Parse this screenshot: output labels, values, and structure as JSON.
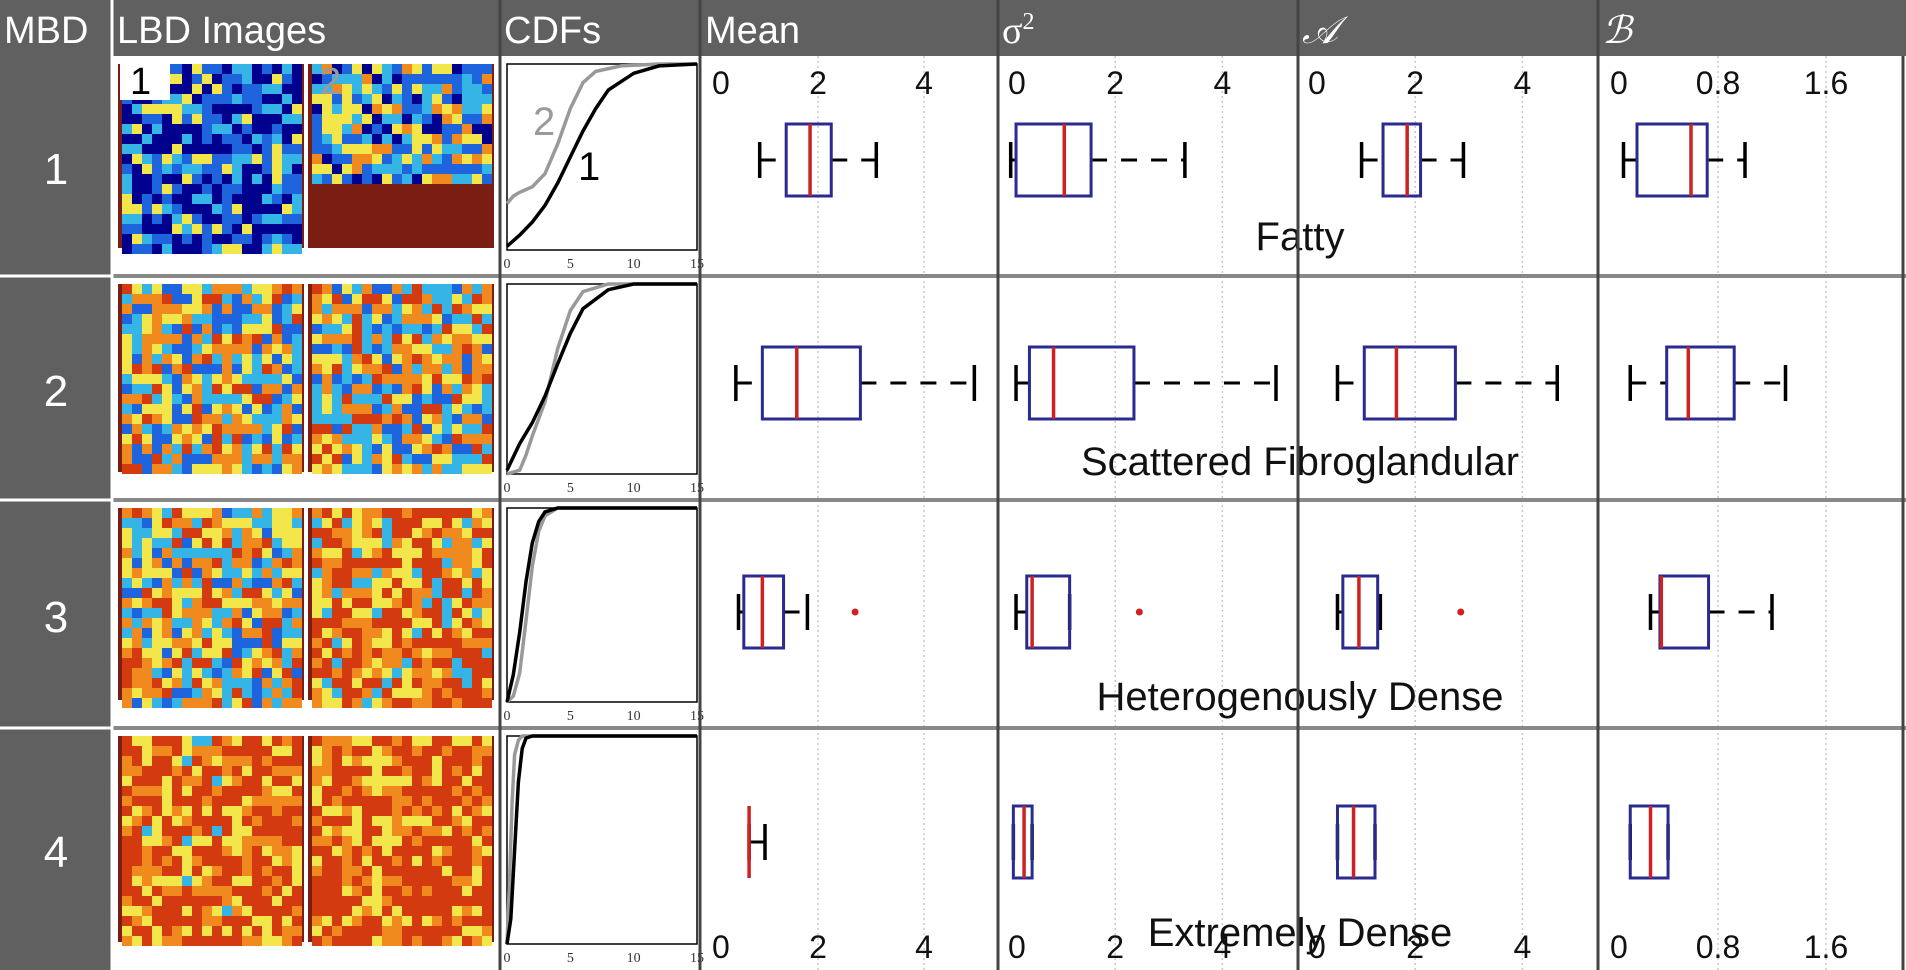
{
  "header": {
    "mbd": "MBD",
    "lbd_images": "LBD Images",
    "cdfs": "CDFs",
    "mean": "Mean",
    "sigma": "σ",
    "sigma_sup": "2",
    "a": "𝒜",
    "b": "ℬ"
  },
  "image_labels": [
    "1",
    "2"
  ],
  "cdf_curve_labels": [
    "2",
    "1"
  ],
  "rows": [
    {
      "mbd": "1",
      "category": "Fatty"
    },
    {
      "mbd": "2",
      "category": "Scattered Fibroglandular"
    },
    {
      "mbd": "3",
      "category": "Heterogenously Dense"
    },
    {
      "mbd": "4",
      "category": "Extremely Dense"
    }
  ],
  "colors": {
    "header_bg": "#606060",
    "header_text": "#ffffff",
    "box_edge": "#2b2b8f",
    "median": "#cc2222",
    "whisker": "#000000",
    "cdf_series_1": "#000000",
    "cdf_series_2": "#999999",
    "lbd_colormap": [
      "#00008f",
      "#1e64dc",
      "#35b5e5",
      "#f2e64a",
      "#f08a1e",
      "#d43a10",
      "#7a1e14"
    ]
  },
  "chart_data": [
    {
      "type": "line",
      "panel": "CDFs",
      "xlim": [
        0,
        15
      ],
      "xticks": [
        0,
        5,
        10,
        15
      ],
      "ylim": [
        0,
        1
      ],
      "rows": [
        {
          "mbd": "1",
          "series": [
            {
              "name": "1",
              "x": [
                0,
                1,
                2,
                3,
                4,
                5,
                6,
                7,
                8,
                10,
                12,
                15
              ],
              "y": [
                0.02,
                0.08,
                0.15,
                0.24,
                0.36,
                0.5,
                0.64,
                0.76,
                0.86,
                0.95,
                0.99,
                1.0
              ]
            },
            {
              "name": "2",
              "x": [
                0,
                0.5,
                1,
                2,
                3,
                4,
                5,
                6,
                7,
                9,
                12,
                15
              ],
              "y": [
                0.25,
                0.29,
                0.31,
                0.34,
                0.41,
                0.57,
                0.76,
                0.9,
                0.96,
                0.99,
                1.0,
                1.0
              ]
            }
          ]
        },
        {
          "mbd": "2",
          "series": [
            {
              "name": "1",
              "x": [
                0,
                1,
                2,
                3,
                4,
                5,
                6,
                8,
                10,
                15
              ],
              "y": [
                0.02,
                0.16,
                0.27,
                0.41,
                0.58,
                0.74,
                0.87,
                0.97,
                1.0,
                1.0
              ]
            },
            {
              "name": "2",
              "x": [
                0,
                1,
                1.5,
                2,
                3,
                4,
                5,
                6,
                8,
                15
              ],
              "y": [
                0.0,
                0.02,
                0.1,
                0.2,
                0.38,
                0.66,
                0.86,
                0.96,
                1.0,
                1.0
              ]
            }
          ]
        },
        {
          "mbd": "3",
          "series": [
            {
              "name": "1",
              "x": [
                0,
                0.5,
                1,
                1.5,
                2,
                2.5,
                3,
                4,
                15
              ],
              "y": [
                0.0,
                0.14,
                0.36,
                0.62,
                0.82,
                0.93,
                0.98,
                1.0,
                1.0
              ]
            },
            {
              "name": "2",
              "x": [
                0,
                0.5,
                1,
                1.5,
                2,
                2.5,
                3,
                4,
                15
              ],
              "y": [
                0.0,
                0.03,
                0.15,
                0.42,
                0.7,
                0.88,
                0.96,
                1.0,
                1.0
              ]
            }
          ]
        },
        {
          "mbd": "4",
          "series": [
            {
              "name": "1",
              "x": [
                0,
                0.3,
                0.6,
                0.9,
                1.2,
                1.5,
                2,
                15
              ],
              "y": [
                0.0,
                0.12,
                0.45,
                0.78,
                0.94,
                0.99,
                1.0,
                1.0
              ]
            },
            {
              "name": "2",
              "x": [
                0,
                0.2,
                0.4,
                0.6,
                0.9,
                1.2,
                2,
                15
              ],
              "y": [
                0.0,
                0.3,
                0.68,
                0.91,
                0.98,
                1.0,
                1.0,
                1.0
              ]
            }
          ]
        }
      ]
    },
    {
      "type": "boxplot",
      "panel": "Mean",
      "xlim": [
        0,
        5
      ],
      "xticks": [
        0,
        2,
        4
      ],
      "grid": true,
      "rows": [
        {
          "mbd": "1",
          "whisker_low": 0.9,
          "q1": 1.4,
          "median": 1.85,
          "q3": 2.25,
          "whisker_high": 3.1,
          "outliers": []
        },
        {
          "mbd": "2",
          "whisker_low": 0.45,
          "q1": 0.95,
          "median": 1.6,
          "q3": 2.8,
          "whisker_high": 4.95,
          "outliers": []
        },
        {
          "mbd": "3",
          "whisker_low": 0.5,
          "q1": 0.6,
          "median": 0.95,
          "q3": 1.35,
          "whisker_high": 1.8,
          "outliers": [
            2.7
          ]
        },
        {
          "mbd": "4",
          "whisker_low": 0.7,
          "q1": 0.7,
          "median": 0.7,
          "q3": 0.7,
          "whisker_high": 1.0,
          "outliers": []
        }
      ]
    },
    {
      "type": "boxplot",
      "panel": "σ2",
      "xlim": [
        0,
        5
      ],
      "xticks": [
        0,
        2,
        4
      ],
      "grid": true,
      "rows": [
        {
          "mbd": "1",
          "whisker_low": 0.05,
          "q1": 0.15,
          "median": 1.05,
          "q3": 1.55,
          "whisker_high": 3.3,
          "outliers": []
        },
        {
          "mbd": "2",
          "whisker_low": 0.15,
          "q1": 0.4,
          "median": 0.85,
          "q3": 2.35,
          "whisker_high": 5.0,
          "outliers": []
        },
        {
          "mbd": "3",
          "whisker_low": 0.15,
          "q1": 0.35,
          "median": 0.45,
          "q3": 1.15,
          "whisker_high": 1.15,
          "outliers": [
            2.45
          ]
        },
        {
          "mbd": "4",
          "whisker_low": 0.1,
          "q1": 0.1,
          "median": 0.3,
          "q3": 0.45,
          "whisker_high": 0.45,
          "outliers": []
        }
      ]
    },
    {
      "type": "boxplot",
      "panel": "A",
      "xlim": [
        0,
        5
      ],
      "xticks": [
        0,
        2,
        4
      ],
      "grid": true,
      "rows": [
        {
          "mbd": "1",
          "whisker_low": 1.0,
          "q1": 1.4,
          "median": 1.85,
          "q3": 2.1,
          "whisker_high": 2.9,
          "outliers": []
        },
        {
          "mbd": "2",
          "whisker_low": 0.55,
          "q1": 1.05,
          "median": 1.65,
          "q3": 2.75,
          "whisker_high": 4.65,
          "outliers": []
        },
        {
          "mbd": "3",
          "whisker_low": 0.55,
          "q1": 0.65,
          "median": 0.95,
          "q3": 1.3,
          "whisker_high": 1.35,
          "outliers": [
            2.85
          ]
        },
        {
          "mbd": "4",
          "whisker_low": 0.55,
          "q1": 0.55,
          "median": 0.85,
          "q3": 1.25,
          "whisker_high": 1.25,
          "outliers": []
        }
      ]
    },
    {
      "type": "boxplot",
      "panel": "B",
      "xlim": [
        0,
        2
      ],
      "xticks": [
        0,
        0.8,
        1.6
      ],
      "grid": true,
      "rows": [
        {
          "mbd": "1",
          "whisker_low": 0.1,
          "q1": 0.2,
          "median": 0.6,
          "q3": 0.72,
          "whisker_high": 1.0,
          "outliers": []
        },
        {
          "mbd": "2",
          "whisker_low": 0.15,
          "q1": 0.42,
          "median": 0.58,
          "q3": 0.92,
          "whisker_high": 1.3,
          "outliers": []
        },
        {
          "mbd": "3",
          "whisker_low": 0.3,
          "q1": 0.37,
          "median": 0.38,
          "q3": 0.73,
          "whisker_high": 1.2,
          "outliers": []
        },
        {
          "mbd": "4",
          "whisker_low": 0.15,
          "q1": 0.15,
          "median": 0.3,
          "q3": 0.43,
          "whisker_high": 0.43,
          "outliers": []
        }
      ]
    }
  ]
}
